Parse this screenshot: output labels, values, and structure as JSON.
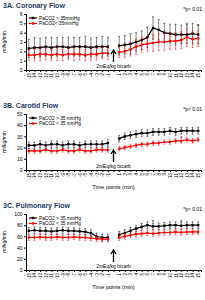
{
  "chart_data": [
    {
      "type": "line",
      "title": "3A. Coronary Flow",
      "y_label": "ml/kg/min",
      "note": "*p< 0.01",
      "event_label": "2mEq/kg bicarb",
      "categories": [
        "-15",
        "-14",
        "-13",
        "-12",
        "-11",
        "-10",
        "-9",
        "-8",
        "-7",
        "-6",
        "-5",
        "-4",
        "-3",
        "-2",
        "-1",
        null,
        "1",
        "2",
        "3",
        "4",
        "5",
        "6",
        "7",
        "8",
        "9",
        "10",
        "11",
        "12",
        "13",
        "14",
        "15"
      ],
      "series": [
        {
          "name": "PaCO2 > 35mmHg",
          "color": "#000000",
          "marker": "square",
          "values": [
            2.3,
            2.4,
            2.4,
            2.5,
            2.4,
            2.5,
            2.5,
            2.4,
            2.5,
            2.5,
            2.5,
            2.4,
            2.5,
            2.5,
            2.5,
            null,
            2.6,
            2.7,
            2.8,
            3.0,
            3.2,
            3.5,
            4.5,
            4.3,
            4.0,
            3.9,
            3.8,
            3.8,
            3.8,
            3.9,
            3.8
          ],
          "errors": [
            1.0,
            1.1,
            1.0,
            1.0,
            1.1,
            1.0,
            1.0,
            1.1,
            1.0,
            1.0,
            1.1,
            1.0,
            1.0,
            1.1,
            1.0,
            null,
            1.0,
            1.0,
            1.1,
            1.0,
            1.0,
            1.1,
            1.2,
            1.1,
            1.0,
            1.0,
            1.1,
            1.0,
            1.0,
            1.1,
            1.0
          ]
        },
        {
          "name": "PaCO2< 35mmHg",
          "color": "#ff0000",
          "marker": "circle",
          "values": [
            1.6,
            1.6,
            1.7,
            1.7,
            1.6,
            1.7,
            1.6,
            1.7,
            1.7,
            1.7,
            1.6,
            1.7,
            1.7,
            1.8,
            1.8,
            null,
            1.9,
            2.0,
            2.2,
            2.5,
            2.7,
            2.8,
            2.9,
            3.0,
            3.0,
            3.1,
            3.1,
            3.2,
            3.5,
            3.3,
            3.4
          ],
          "errors": [
            0.6,
            0.6,
            0.7,
            0.6,
            0.6,
            0.7,
            0.6,
            0.6,
            0.7,
            0.6,
            0.6,
            0.7,
            0.6,
            0.6,
            0.7,
            null,
            0.6,
            0.7,
            0.7,
            0.8,
            0.8,
            0.8,
            0.9,
            0.9,
            0.9,
            0.9,
            0.9,
            0.9,
            1.0,
            0.9,
            0.9
          ]
        }
      ],
      "annotations": [
        {
          "text": "*",
          "x": "13",
          "y": 5.0
        },
        {
          "text": "*",
          "x": "15",
          "y": 4.9
        }
      ],
      "ylim": [
        0,
        6
      ],
      "yticks": [
        0,
        1,
        2,
        3,
        4,
        5,
        6
      ],
      "grid": false,
      "legend": "upper left"
    },
    {
      "type": "line",
      "title": "3B. Carotid Flow",
      "y_label": "ml/kg/min",
      "x_label": "Time points (min)",
      "note": "*p< 0.01",
      "event_label": "2mEq/kg bicarb",
      "categories": [
        "-15",
        "-14",
        "-13",
        "-12",
        "-11",
        "-10",
        "-9",
        "-8",
        "-7",
        "-6",
        "-5",
        "-4",
        "-3",
        "-2",
        "-1",
        null,
        "1",
        "2",
        "3",
        "4",
        "5",
        "6",
        "7",
        "8",
        "9",
        "10",
        "11",
        "12",
        "13",
        "14",
        "15"
      ],
      "series": [
        {
          "name": "PaCO2 > 35 mmHg",
          "color": "#000000",
          "marker": "square",
          "values": [
            22,
            22,
            23,
            22,
            23,
            23,
            22,
            23,
            23,
            22,
            23,
            23,
            23,
            23,
            24,
            null,
            28,
            30,
            31,
            32,
            33,
            33,
            34,
            34,
            34,
            35,
            34,
            35,
            35,
            35,
            35
          ],
          "errors": [
            3,
            3,
            3,
            3,
            3,
            3,
            3,
            3,
            3,
            3,
            3,
            3,
            3,
            3,
            3,
            null,
            3,
            3,
            3,
            3,
            3,
            3,
            3,
            3,
            3,
            3,
            3,
            3,
            3,
            3,
            3
          ]
        },
        {
          "name": "PaCO2 < 35 mmHg",
          "color": "#ff0000",
          "marker": "circle",
          "values": [
            17,
            17,
            17,
            18,
            17,
            17,
            18,
            17,
            17,
            18,
            17,
            17,
            18,
            18,
            18,
            null,
            19,
            20,
            21,
            22,
            23,
            23,
            24,
            24,
            25,
            25,
            26,
            26,
            27,
            26,
            27
          ],
          "errors": [
            2,
            2,
            2,
            2,
            2,
            2,
            2,
            2,
            2,
            2,
            2,
            2,
            2,
            2,
            2,
            null,
            2,
            2,
            2,
            2,
            2,
            2,
            2,
            2,
            2,
            2,
            2,
            2,
            2,
            2,
            2
          ]
        }
      ],
      "annotations": [
        {
          "text": "*",
          "x": "12",
          "y": 30
        }
      ],
      "ylim": [
        0,
        50
      ],
      "yticks": [
        0,
        10,
        20,
        30,
        40,
        50
      ],
      "grid": false,
      "legend": "upper left"
    },
    {
      "type": "line",
      "title": "3C. Pulmonary Flow",
      "y_label": "ml/kg/min",
      "x_label": "Time points (min)",
      "note": "*p< 0.01",
      "event_label": "2mEq/kg bicarb",
      "categories": [
        "-15",
        "-14",
        "-13",
        "-12",
        "-11",
        "-10",
        "-9",
        "-8",
        "-7",
        "-6",
        "-5",
        "-4",
        "-3",
        "-2",
        "-1",
        null,
        "1",
        "2",
        "3",
        "4",
        "5",
        "6",
        "7",
        "8",
        "9",
        "10",
        "11",
        "12",
        "13",
        "14",
        "15"
      ],
      "series": [
        {
          "name": "PaCO2 > 35 mmHg",
          "color": "#000000",
          "marker": "square",
          "values": [
            70,
            71,
            70,
            70,
            69,
            70,
            71,
            70,
            70,
            69,
            68,
            66,
            60,
            58,
            58,
            null,
            63,
            66,
            70,
            74,
            77,
            80,
            78,
            78,
            79,
            80,
            80,
            79,
            80,
            80,
            80
          ],
          "errors": [
            6,
            6,
            6,
            6,
            6,
            6,
            6,
            6,
            6,
            6,
            6,
            6,
            6,
            6,
            6,
            null,
            6,
            6,
            6,
            6,
            6,
            6,
            6,
            6,
            6,
            6,
            6,
            6,
            6,
            6,
            6
          ]
        },
        {
          "name": "PaCO2 < 35 mmHg",
          "color": "#ff0000",
          "marker": "circle",
          "values": [
            58,
            58,
            59,
            58,
            58,
            59,
            58,
            58,
            59,
            58,
            58,
            57,
            56,
            55,
            55,
            null,
            58,
            60,
            62,
            64,
            65,
            66,
            65,
            66,
            67,
            67,
            68,
            67,
            68,
            68,
            68
          ],
          "errors": [
            5,
            5,
            5,
            5,
            5,
            5,
            5,
            5,
            5,
            5,
            5,
            5,
            5,
            5,
            5,
            null,
            5,
            5,
            5,
            5,
            5,
            5,
            5,
            5,
            5,
            5,
            5,
            5,
            5,
            5,
            5
          ]
        }
      ],
      "annotations": [
        {
          "text": "*",
          "x": "7",
          "y": 88
        },
        {
          "text": "*",
          "x": "12",
          "y": 89
        }
      ],
      "ylim": [
        0,
        100
      ],
      "yticks": [
        0,
        20,
        40,
        60,
        80,
        100
      ],
      "grid": false,
      "legend": "upper left"
    }
  ]
}
